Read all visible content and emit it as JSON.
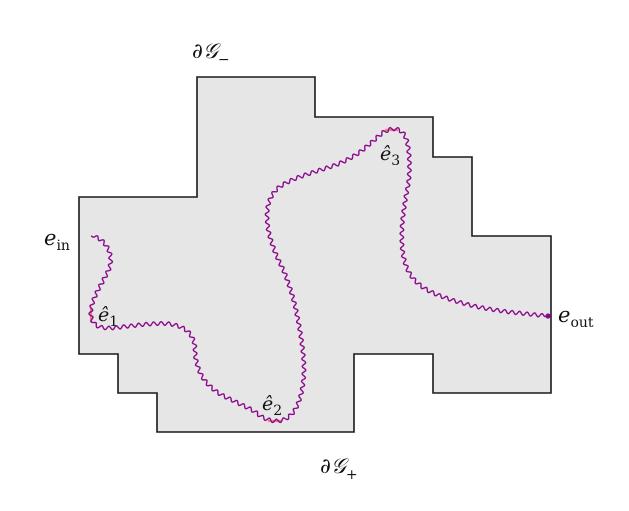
{
  "labels": {
    "boundary_minus": {
      "base": "∂𝒢",
      "sub": "−"
    },
    "boundary_plus": {
      "base": "∂𝒢",
      "sub": "+"
    },
    "e_in": {
      "base": "e",
      "sub": "in"
    },
    "e_out": {
      "base": "e",
      "sub": "out"
    },
    "e_hat_1": {
      "base": "ê",
      "sub": "1"
    },
    "e_hat_2": {
      "base": "ê",
      "sub": "2"
    },
    "e_hat_3": {
      "base": "ê",
      "sub": "3"
    }
  },
  "colors": {
    "region_fill": "#e6e6e6",
    "region_stroke": "#1a1a1a",
    "path": "#8b0a8b",
    "highlight_edge": "#f08080"
  }
}
